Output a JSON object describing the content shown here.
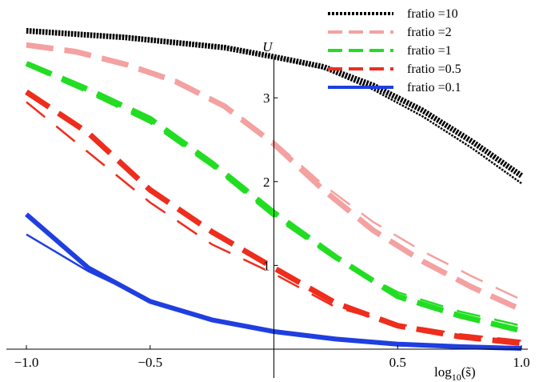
{
  "chart_data": {
    "type": "line",
    "title": "",
    "xlabel": "log10(s̃)",
    "xlabel_parts": {
      "base": "log",
      "sub": "10",
      "arg": "(s̃)"
    },
    "ylabel": "U",
    "xlim": [
      -1.0,
      1.0
    ],
    "ylim": [
      0,
      3.9
    ],
    "x_ticks": [
      {
        "value": -1.0,
        "label": "−1.0"
      },
      {
        "value": -0.5,
        "label": "−0.5"
      },
      {
        "value": 0.5,
        "label": "0.5"
      },
      {
        "value": 1.0,
        "label": "1.0"
      }
    ],
    "y_ticks": [
      {
        "value": 1,
        "label": "1"
      },
      {
        "value": 2,
        "label": "2"
      },
      {
        "value": 3,
        "label": "3"
      }
    ],
    "grid": false,
    "legend_position": "top-right",
    "series": [
      {
        "name": "fratio =10",
        "color": "#000000",
        "style": "dotted",
        "curves": [
          {
            "kind": "thick",
            "x": [
              -1.0,
              -0.6,
              -0.2,
              0.0,
              0.2,
              0.4,
              0.6,
              0.8,
              1.0
            ],
            "y": [
              3.8,
              3.72,
              3.6,
              3.49,
              3.37,
              3.15,
              2.85,
              2.48,
              2.07
            ]
          },
          {
            "kind": "thin",
            "x": [
              -1.0,
              -0.6,
              -0.2,
              0.0,
              0.2,
              0.4,
              0.6,
              0.8,
              1.0
            ],
            "y": [
              3.82,
              3.74,
              3.61,
              3.49,
              3.35,
              3.1,
              2.78,
              2.4,
              1.98
            ]
          }
        ]
      },
      {
        "name": "fratio =2",
        "color": "#f4a1a1",
        "style": "dashed",
        "curves": [
          {
            "kind": "thick",
            "x": [
              -1.0,
              -0.8,
              -0.6,
              -0.4,
              -0.2,
              0.0,
              0.2,
              0.4,
              0.6,
              0.8,
              1.0
            ],
            "y": [
              3.63,
              3.55,
              3.4,
              3.2,
              2.9,
              2.45,
              1.9,
              1.42,
              1.05,
              0.74,
              0.47
            ]
          },
          {
            "kind": "thin",
            "x": [
              -1.0,
              -0.8,
              -0.6,
              -0.4,
              -0.2,
              0.0,
              0.2,
              0.4,
              0.6,
              0.8,
              1.0
            ],
            "y": [
              3.65,
              3.57,
              3.42,
              3.22,
              2.92,
              2.48,
              1.96,
              1.52,
              1.17,
              0.87,
              0.59
            ]
          }
        ]
      },
      {
        "name": "fratio =1",
        "color": "#22dd22",
        "style": "dashed",
        "curves": [
          {
            "kind": "thick",
            "x": [
              -1.0,
              -0.75,
              -0.5,
              -0.25,
              0.0,
              0.25,
              0.5,
              0.75,
              1.0
            ],
            "y": [
              3.41,
              3.1,
              2.75,
              2.22,
              1.63,
              1.1,
              0.63,
              0.4,
              0.22
            ]
          },
          {
            "kind": "thin",
            "x": [
              -1.0,
              -0.75,
              -0.5,
              -0.25,
              0.0,
              0.25,
              0.5,
              0.75,
              1.0
            ],
            "y": [
              3.39,
              3.06,
              2.7,
              2.18,
              1.58,
              1.07,
              0.68,
              0.45,
              0.28
            ]
          }
        ]
      },
      {
        "name": "fratio =0.5",
        "color": "#ee2d1d",
        "style": "dashed",
        "curves": [
          {
            "kind": "thick",
            "x": [
              -1.0,
              -0.75,
              -0.5,
              -0.25,
              0.0,
              0.25,
              0.5,
              0.75,
              1.0
            ],
            "y": [
              3.07,
              2.58,
              1.9,
              1.4,
              0.97,
              0.55,
              0.28,
              0.15,
              0.07
            ]
          },
          {
            "kind": "thin",
            "x": [
              -1.0,
              -0.75,
              -0.5,
              -0.25,
              0.0,
              0.25,
              0.5,
              0.75,
              1.0
            ],
            "y": [
              2.95,
              2.35,
              1.75,
              1.25,
              0.9,
              0.5,
              0.3,
              0.18,
              0.1
            ]
          }
        ]
      },
      {
        "name": "fratio =0.1",
        "color": "#1f3fe0",
        "style": "solid",
        "curves": [
          {
            "kind": "thick",
            "x": [
              -1.0,
              -0.75,
              -0.5,
              -0.25,
              0.0,
              0.25,
              0.5,
              0.75,
              1.0
            ],
            "y": [
              1.61,
              0.97,
              0.57,
              0.35,
              0.21,
              0.12,
              0.06,
              0.03,
              0.01
            ]
          },
          {
            "kind": "thin",
            "x": [
              -1.0,
              -0.75,
              -0.5,
              -0.25,
              0.0,
              0.25,
              0.5,
              0.75,
              1.0
            ],
            "y": [
              1.37,
              0.93,
              0.58,
              0.35,
              0.21,
              0.12,
              0.06,
              0.03,
              0.01
            ]
          }
        ]
      }
    ]
  }
}
